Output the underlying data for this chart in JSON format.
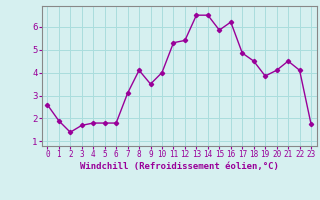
{
  "x": [
    0,
    1,
    2,
    3,
    4,
    5,
    6,
    7,
    8,
    9,
    10,
    11,
    12,
    13,
    14,
    15,
    16,
    17,
    18,
    19,
    20,
    21,
    22,
    23
  ],
  "y": [
    2.6,
    1.9,
    1.4,
    1.7,
    1.8,
    1.8,
    1.8,
    3.1,
    4.1,
    3.5,
    4.0,
    5.3,
    5.4,
    6.5,
    6.5,
    5.85,
    6.2,
    4.85,
    4.5,
    3.85,
    4.1,
    4.5,
    4.1,
    1.75
  ],
  "line_color": "#990099",
  "marker": "D",
  "marker_size": 2.2,
  "bg_color": "#d6f0f0",
  "grid_color": "#aadddd",
  "xlabel": "Windchill (Refroidissement éolien,°C)",
  "xlabel_color": "#990099",
  "tick_color": "#990099",
  "spine_color": "#888888",
  "xlim": [
    -0.5,
    23.5
  ],
  "ylim": [
    0.8,
    6.9
  ],
  "yticks": [
    1,
    2,
    3,
    4,
    5,
    6
  ],
  "xticks": [
    0,
    1,
    2,
    3,
    4,
    5,
    6,
    7,
    8,
    9,
    10,
    11,
    12,
    13,
    14,
    15,
    16,
    17,
    18,
    19,
    20,
    21,
    22,
    23
  ],
  "xtick_labels": [
    "0",
    "1",
    "2",
    "3",
    "4",
    "5",
    "6",
    "7",
    "8",
    "9",
    "10",
    "11",
    "12",
    "13",
    "14",
    "15",
    "16",
    "17",
    "18",
    "19",
    "20",
    "21",
    "22",
    "23"
  ],
  "tick_fontsize": 5.5,
  "ytick_fontsize": 6.5,
  "xlabel_fontsize": 6.5,
  "linewidth": 1.0
}
